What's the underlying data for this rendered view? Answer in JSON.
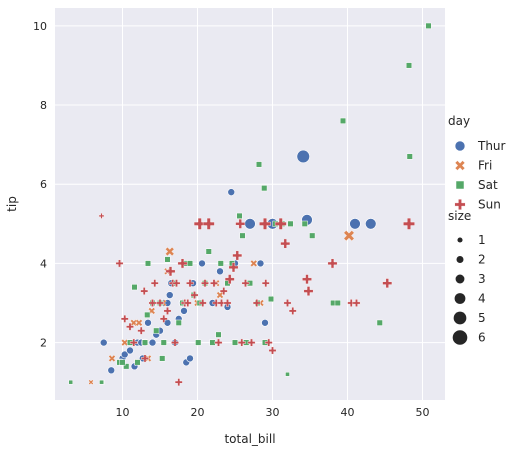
{
  "chart_data": {
    "type": "scatter",
    "xlabel": "total_bill",
    "ylabel": "tip",
    "xlim": [
      1.0,
      53.0
    ],
    "ylim": [
      0.55,
      10.45
    ],
    "xticks": [
      10,
      20,
      30,
      40,
      50
    ],
    "yticks": [
      2,
      4,
      6,
      8,
      10
    ],
    "grid": true,
    "legend_placement": "right",
    "hue_legend": {
      "title": "day",
      "entries": [
        {
          "label": "Thur",
          "color": "#4C72B0",
          "marker": "circle"
        },
        {
          "label": "Fri",
          "color": "#DD8452",
          "marker": "x"
        },
        {
          "label": "Sat",
          "color": "#55A868",
          "marker": "square"
        },
        {
          "label": "Sun",
          "color": "#C44E52",
          "marker": "plus"
        }
      ]
    },
    "size_legend": {
      "title": "size",
      "entries": [
        {
          "label": "1",
          "value": 1
        },
        {
          "label": "2",
          "value": 2
        },
        {
          "label": "3",
          "value": 3
        },
        {
          "label": "4",
          "value": 4
        },
        {
          "label": "5",
          "value": 5
        },
        {
          "label": "6",
          "value": 6
        }
      ]
    },
    "series": [
      {
        "name": "Thur",
        "points": [
          [
            7.5,
            2.0
          ],
          [
            10.0,
            1.6
          ],
          [
            10.3,
            1.7
          ],
          [
            11.0,
            1.8
          ],
          [
            11.5,
            2.0
          ],
          [
            12.0,
            2.0
          ],
          [
            12.5,
            2.0
          ],
          [
            13.0,
            2.0
          ],
          [
            13.4,
            2.5
          ],
          [
            13.0,
            1.6
          ],
          [
            14.0,
            2.0
          ],
          [
            14.5,
            2.2
          ],
          [
            15.0,
            2.3
          ],
          [
            15.5,
            3.0
          ],
          [
            16.0,
            2.5
          ],
          [
            16.3,
            3.2
          ],
          [
            16.5,
            3.5
          ],
          [
            17.0,
            2.0
          ],
          [
            17.5,
            2.6
          ],
          [
            18.0,
            3.0
          ],
          [
            18.2,
            2.8
          ],
          [
            18.5,
            1.5
          ],
          [
            19.0,
            1.6
          ],
          [
            19.4,
            3.5
          ],
          [
            20.3,
            3.0
          ],
          [
            20.6,
            4.0
          ],
          [
            21.0,
            3.5
          ],
          [
            22.0,
            3.0
          ],
          [
            23.0,
            3.8
          ],
          [
            24.0,
            2.9
          ],
          [
            24.5,
            5.8
          ],
          [
            25.0,
            4.0
          ],
          [
            27.0,
            5.0
          ],
          [
            28.4,
            4.0
          ],
          [
            30.0,
            5.0
          ],
          [
            34.1,
            6.7
          ],
          [
            34.6,
            5.1
          ],
          [
            41.0,
            5.0
          ],
          [
            43.1,
            5.0
          ],
          [
            29.0,
            2.5
          ],
          [
            12.7,
            1.6
          ],
          [
            11.6,
            1.4
          ],
          [
            9.8,
            1.5
          ],
          [
            8.5,
            1.3
          ],
          [
            16.0,
            3.0
          ]
        ],
        "sizes": [
          2,
          2,
          2,
          2,
          2,
          2,
          2,
          2,
          2,
          2,
          2,
          2,
          2,
          2,
          2,
          2,
          2,
          2,
          2,
          2,
          2,
          2,
          2,
          2,
          2,
          2,
          2,
          2,
          2,
          2,
          2,
          2,
          4,
          2,
          4,
          5,
          4,
          4,
          4,
          2,
          2,
          2,
          2,
          2,
          2
        ]
      },
      {
        "name": "Fri",
        "points": [
          [
            5.8,
            1.0
          ],
          [
            8.6,
            1.6
          ],
          [
            11.5,
            2.5
          ],
          [
            12.2,
            2.5
          ],
          [
            13.0,
            2.0
          ],
          [
            13.4,
            1.6
          ],
          [
            15.4,
            3.0
          ],
          [
            16.3,
            4.3
          ],
          [
            16.0,
            3.8
          ],
          [
            21.0,
            3.5
          ],
          [
            22.5,
            3.5
          ],
          [
            23.0,
            3.2
          ],
          [
            27.5,
            4.0
          ],
          [
            28.4,
            3.0
          ],
          [
            40.2,
            4.7
          ],
          [
            10.3,
            2.0
          ],
          [
            12.0,
            1.5
          ],
          [
            13.9,
            2.8
          ],
          [
            20.0,
            3.0
          ]
        ],
        "sizes": [
          1,
          2,
          2,
          2,
          2,
          2,
          2,
          3,
          2,
          2,
          2,
          2,
          2,
          2,
          4,
          2,
          2,
          2,
          2
        ]
      },
      {
        "name": "Sat",
        "points": [
          [
            3.1,
            1.0
          ],
          [
            7.3,
            1.0
          ],
          [
            9.6,
            1.5
          ],
          [
            10.5,
            1.4
          ],
          [
            11.0,
            2.0
          ],
          [
            11.6,
            3.4
          ],
          [
            12.0,
            1.5
          ],
          [
            13.0,
            2.0
          ],
          [
            13.4,
            4.0
          ],
          [
            14.0,
            3.0
          ],
          [
            14.5,
            2.3
          ],
          [
            15.0,
            3.0
          ],
          [
            15.3,
            1.6
          ],
          [
            16.0,
            4.1
          ],
          [
            17.0,
            3.5
          ],
          [
            17.5,
            2.5
          ],
          [
            18.0,
            3.0
          ],
          [
            18.4,
            4.0
          ],
          [
            19.0,
            4.0
          ],
          [
            19.5,
            3.2
          ],
          [
            20.1,
            2.0
          ],
          [
            20.3,
            3.0
          ],
          [
            21.0,
            3.5
          ],
          [
            21.5,
            4.3
          ],
          [
            22.0,
            2.0
          ],
          [
            22.8,
            2.2
          ],
          [
            23.1,
            4.0
          ],
          [
            24.0,
            3.5
          ],
          [
            24.6,
            4.0
          ],
          [
            25.0,
            2.0
          ],
          [
            25.6,
            5.2
          ],
          [
            26.0,
            4.7
          ],
          [
            26.5,
            2.0
          ],
          [
            27.0,
            3.5
          ],
          [
            28.0,
            3.0
          ],
          [
            28.2,
            6.5
          ],
          [
            28.9,
            5.9
          ],
          [
            29.0,
            2.0
          ],
          [
            29.8,
            3.1
          ],
          [
            30.4,
            5.0
          ],
          [
            31.3,
            5.0
          ],
          [
            32.0,
            1.2
          ],
          [
            32.4,
            5.0
          ],
          [
            34.3,
            5.0
          ],
          [
            35.3,
            4.7
          ],
          [
            38.1,
            3.0
          ],
          [
            38.7,
            3.0
          ],
          [
            39.4,
            7.6
          ],
          [
            44.3,
            2.5
          ],
          [
            48.2,
            9.0
          ],
          [
            48.3,
            6.7
          ],
          [
            50.8,
            10.0
          ],
          [
            7.2,
            1.0
          ],
          [
            10.0,
            1.5
          ],
          [
            13.3,
            2.7
          ],
          [
            15.5,
            2.0
          ]
        ],
        "sizes": [
          1,
          1,
          2,
          2,
          2,
          2,
          2,
          2,
          2,
          2,
          2,
          2,
          2,
          2,
          2,
          2,
          2,
          2,
          2,
          2,
          2,
          2,
          2,
          2,
          2,
          2,
          2,
          2,
          2,
          2,
          2,
          2,
          2,
          2,
          2,
          2,
          2,
          2,
          2,
          2,
          2,
          1,
          2,
          2,
          2,
          2,
          2,
          2,
          2,
          2,
          2,
          2,
          1,
          2,
          2,
          2
        ]
      },
      {
        "name": "Sun",
        "points": [
          [
            7.2,
            5.2
          ],
          [
            9.6,
            4.0
          ],
          [
            10.3,
            2.6
          ],
          [
            11.5,
            2.0
          ],
          [
            12.5,
            2.3
          ],
          [
            13.0,
            1.6
          ],
          [
            14.0,
            3.0
          ],
          [
            14.3,
            3.5
          ],
          [
            15.0,
            3.0
          ],
          [
            15.5,
            2.6
          ],
          [
            16.0,
            2.8
          ],
          [
            16.4,
            3.8
          ],
          [
            16.7,
            3.5
          ],
          [
            17.2,
            3.5
          ],
          [
            17.0,
            2.0
          ],
          [
            17.5,
            1.0
          ],
          [
            18.0,
            4.0
          ],
          [
            18.3,
            3.0
          ],
          [
            18.7,
            3.0
          ],
          [
            19.0,
            3.5
          ],
          [
            19.6,
            3.2
          ],
          [
            20.3,
            5.0
          ],
          [
            20.7,
            3.0
          ],
          [
            21.5,
            5.0
          ],
          [
            21.0,
            3.5
          ],
          [
            22.2,
            3.5
          ],
          [
            22.5,
            3.0
          ],
          [
            22.8,
            2.0
          ],
          [
            23.2,
            3.0
          ],
          [
            23.5,
            3.3
          ],
          [
            24.0,
            3.0
          ],
          [
            24.3,
            3.6
          ],
          [
            24.8,
            3.9
          ],
          [
            25.3,
            4.2
          ],
          [
            25.9,
            2.0
          ],
          [
            26.4,
            3.5
          ],
          [
            27.2,
            2.0
          ],
          [
            27.9,
            3.0
          ],
          [
            29.0,
            5.0
          ],
          [
            29.5,
            2.0
          ],
          [
            30.0,
            1.8
          ],
          [
            31.1,
            5.0
          ],
          [
            31.7,
            4.5
          ],
          [
            32.0,
            3.0
          ],
          [
            32.7,
            2.8
          ],
          [
            34.6,
            3.6
          ],
          [
            34.8,
            3.3
          ],
          [
            38.0,
            4.0
          ],
          [
            40.5,
            3.0
          ],
          [
            41.2,
            3.0
          ],
          [
            45.3,
            3.5
          ],
          [
            48.2,
            5.0
          ],
          [
            25.7,
            5.0
          ],
          [
            29.1,
            3.5
          ],
          [
            11.0,
            2.4
          ],
          [
            12.9,
            3.3
          ]
        ],
        "sizes": [
          1,
          2,
          2,
          2,
          2,
          2,
          2,
          2,
          2,
          2,
          2,
          3,
          2,
          2,
          2,
          2,
          3,
          2,
          2,
          2,
          2,
          4,
          2,
          4,
          2,
          2,
          2,
          2,
          2,
          2,
          2,
          3,
          3,
          3,
          2,
          2,
          2,
          2,
          4,
          2,
          2,
          4,
          3,
          2,
          2,
          3,
          3,
          3,
          2,
          2,
          3,
          4,
          3,
          2,
          2,
          2
        ]
      }
    ]
  }
}
